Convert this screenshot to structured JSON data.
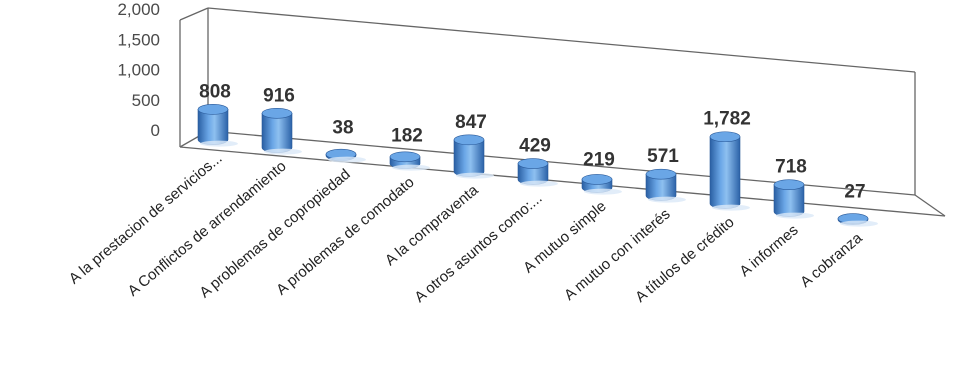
{
  "chart_data": {
    "type": "bar",
    "style": "3d-cylinder",
    "categories": [
      "A la prestacion de servicios...",
      "A Conflictos de arrendamiento",
      "A problemas de copropiedad",
      "A problemas de comodato",
      "A la compraventa",
      "A otros asuntos como:...",
      "A mutuo simple",
      "A mutuo con interés",
      "A títulos de crédito",
      "A informes",
      "A cobranza"
    ],
    "values": [
      808,
      916,
      38,
      182,
      847,
      429,
      219,
      571,
      1782,
      718,
      27
    ],
    "value_labels": [
      "808",
      "916",
      "38",
      "182",
      "847",
      "429",
      "219",
      "571",
      "1,782",
      "718",
      "27"
    ],
    "y_ticks": [
      "0",
      "500",
      "1,000",
      "1,500",
      "2,000"
    ],
    "ylim": [
      0,
      2000
    ],
    "grid": false,
    "legend": "none",
    "colors": {
      "bar": "#4f8fd6",
      "bar_dark": "#2a5fa3",
      "bar_light": "#9cc6f2",
      "frame": "#666666"
    }
  }
}
